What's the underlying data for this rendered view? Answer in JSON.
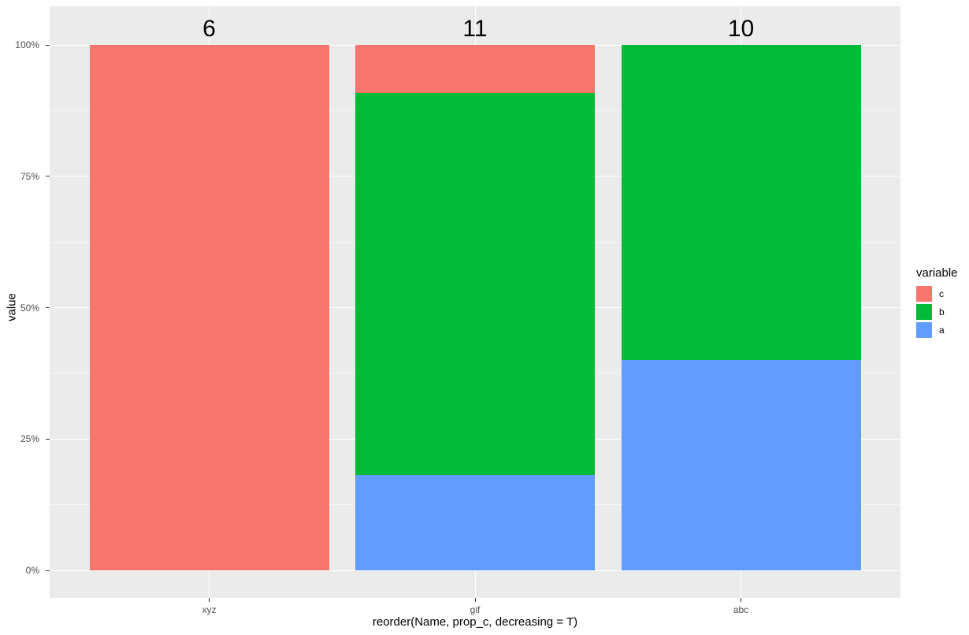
{
  "figure": {
    "background": "#FFFFFF",
    "panel_background": "#EBEBEB",
    "grid_major_color": "#FFFFFF",
    "tick_label_color": "#4D4D4D",
    "tick_mark_color": "#333333",
    "text_color": "#000000"
  },
  "axes": {
    "y_title": "value",
    "x_title": "reorder(Name, prop_c, decreasing = T)",
    "y_tick_labels": [
      "0%",
      "25%",
      "50%",
      "75%",
      "100%"
    ],
    "y_tick_values": [
      0,
      0.25,
      0.5,
      0.75,
      1
    ],
    "y_minor_values": [
      0.125,
      0.375,
      0.625,
      0.875
    ],
    "x_tick_labels": [
      "xyz",
      "gif",
      "abc"
    ]
  },
  "legend": {
    "title": "variable",
    "items": [
      {
        "label": "c",
        "color": "#F8766D"
      },
      {
        "label": "b",
        "color": "#00BA38"
      },
      {
        "label": "a",
        "color": "#619CFF"
      }
    ]
  },
  "chart_data": {
    "type": "bar",
    "stacked": true,
    "normalized": "percent",
    "title": "",
    "xlabel": "reorder(Name, prop_c, decreasing = T)",
    "ylabel": "value",
    "ylim": [
      0,
      1
    ],
    "grid": true,
    "legend_position": "right",
    "categories": [
      "xyz",
      "gif",
      "abc"
    ],
    "bar_total_labels": [
      "6",
      "11",
      "10"
    ],
    "bar_totals": [
      6,
      11,
      10
    ],
    "series": [
      {
        "name": "c",
        "color": "#F8766D",
        "counts": [
          6,
          1,
          0
        ],
        "proportions": [
          1.0,
          0.0909,
          0.0
        ]
      },
      {
        "name": "b",
        "color": "#00BA38",
        "counts": [
          0,
          8,
          6
        ],
        "proportions": [
          0.0,
          0.7273,
          0.6
        ]
      },
      {
        "name": "a",
        "color": "#619CFF",
        "counts": [
          0,
          2,
          4
        ],
        "proportions": [
          0.0,
          0.1818,
          0.4
        ]
      }
    ],
    "stack_order_top_to_bottom": [
      "c",
      "b",
      "a"
    ]
  }
}
